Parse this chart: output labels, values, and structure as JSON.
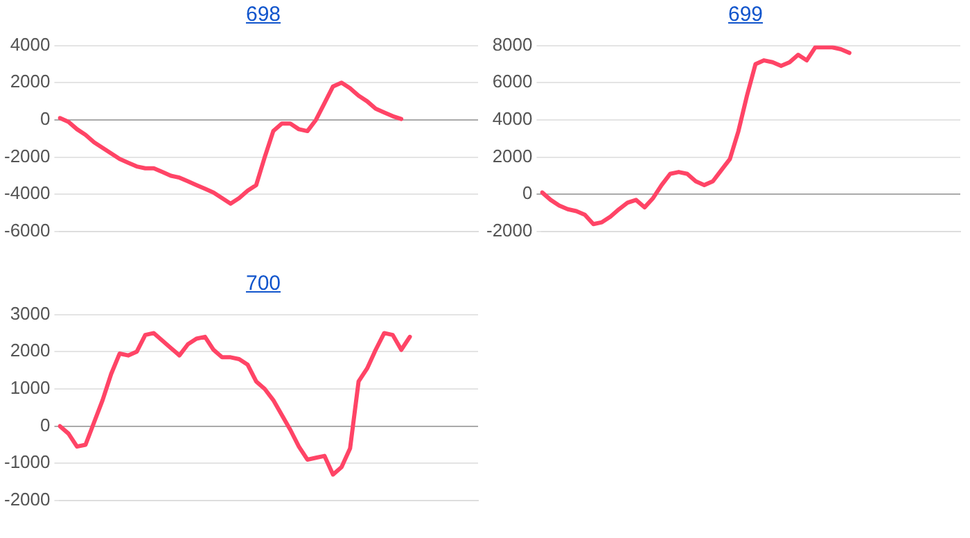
{
  "chart_data": [
    {
      "type": "line",
      "title": "698",
      "categories": [
        null,
        null,
        null,
        null,
        null,
        null,
        null,
        null,
        null,
        null,
        null,
        null,
        null,
        null,
        null,
        null,
        null,
        null,
        null,
        null,
        null,
        null,
        null,
        null,
        null,
        null,
        null,
        null,
        null,
        null,
        null,
        null,
        null,
        null,
        null,
        null,
        null,
        null,
        null,
        null,
        null,
        null,
        null,
        null,
        null,
        null,
        null,
        null,
        null,
        null
      ],
      "series": [
        {
          "color": "#ff4466",
          "values": [
            100,
            -100,
            -500,
            -800,
            -1200,
            -1500,
            -1800,
            -2100,
            -2300,
            -2500,
            -2600,
            -2600,
            -2800,
            -3000,
            -3100,
            -3300,
            -3500,
            -3700,
            -3900,
            -4200,
            -4500,
            -4200,
            -3800,
            -3500,
            -2000,
            -600,
            -200,
            -200,
            -500,
            -600,
            0,
            900,
            1800,
            2000,
            1700,
            1300,
            1000,
            600,
            400,
            200,
            50,
            null,
            null,
            null,
            null,
            null,
            null,
            null,
            null,
            null
          ]
        }
      ],
      "ylim": [
        -6000,
        4000
      ],
      "yticks": [
        -6000,
        -4000,
        -2000,
        0,
        2000,
        4000
      ],
      "grid": "y",
      "tick_labels": "y",
      "marker": "none"
    },
    {
      "type": "line",
      "title": "699",
      "categories": [
        null,
        null,
        null,
        null,
        null,
        null,
        null,
        null,
        null,
        null,
        null,
        null,
        null,
        null,
        null,
        null,
        null,
        null,
        null,
        null,
        null,
        null,
        null,
        null,
        null,
        null,
        null,
        null,
        null,
        null,
        null,
        null,
        null,
        null,
        null,
        null,
        null,
        null,
        null,
        null,
        null,
        null,
        null,
        null,
        null,
        null,
        null,
        null,
        null,
        null
      ],
      "series": [
        {
          "color": "#ff4466",
          "values": [
            100,
            -300,
            -600,
            -800,
            -900,
            -1100,
            -1600,
            -1500,
            -1200,
            -800,
            -450,
            -300,
            -700,
            -200,
            500,
            1100,
            1200,
            1100,
            700,
            500,
            700,
            1300,
            1900,
            3400,
            5300,
            7000,
            7200,
            7100,
            6900,
            7100,
            7500,
            7200,
            7900,
            7900,
            7900,
            7800,
            7600,
            null,
            null,
            null,
            null,
            null,
            null,
            null,
            null,
            null,
            null,
            null,
            null,
            null
          ]
        }
      ],
      "ylim": [
        -2000,
        8000
      ],
      "yticks": [
        -2000,
        0,
        2000,
        4000,
        6000,
        8000
      ],
      "grid": "y",
      "tick_labels": "y",
      "marker": "none"
    },
    {
      "type": "line",
      "title": "700",
      "categories": [
        null,
        null,
        null,
        null,
        null,
        null,
        null,
        null,
        null,
        null,
        null,
        null,
        null,
        null,
        null,
        null,
        null,
        null,
        null,
        null,
        null,
        null,
        null,
        null,
        null,
        null,
        null,
        null,
        null,
        null,
        null,
        null,
        null,
        null,
        null,
        null,
        null,
        null,
        null,
        null,
        null,
        null,
        null,
        null,
        null,
        null,
        null,
        null,
        null,
        null
      ],
      "series": [
        {
          "color": "#ff4466",
          "values": [
            0,
            -200,
            -550,
            -500,
            100,
            700,
            1400,
            1950,
            1900,
            2000,
            2450,
            2500,
            2300,
            2100,
            1900,
            2200,
            2350,
            2400,
            2050,
            1850,
            1850,
            1800,
            1650,
            1200,
            1000,
            700,
            300,
            -100,
            -550,
            -900,
            -850,
            -800,
            -1300,
            -1100,
            -600,
            1200,
            1550,
            2050,
            2500,
            2450,
            2050,
            2400,
            null,
            null,
            null,
            null,
            null,
            null,
            null,
            null
          ]
        }
      ],
      "ylim": [
        -2000,
        3000
      ],
      "yticks": [
        -2000,
        -1000,
        0,
        1000,
        2000,
        3000
      ],
      "grid": "y",
      "tick_labels": "y",
      "marker": "none"
    }
  ]
}
